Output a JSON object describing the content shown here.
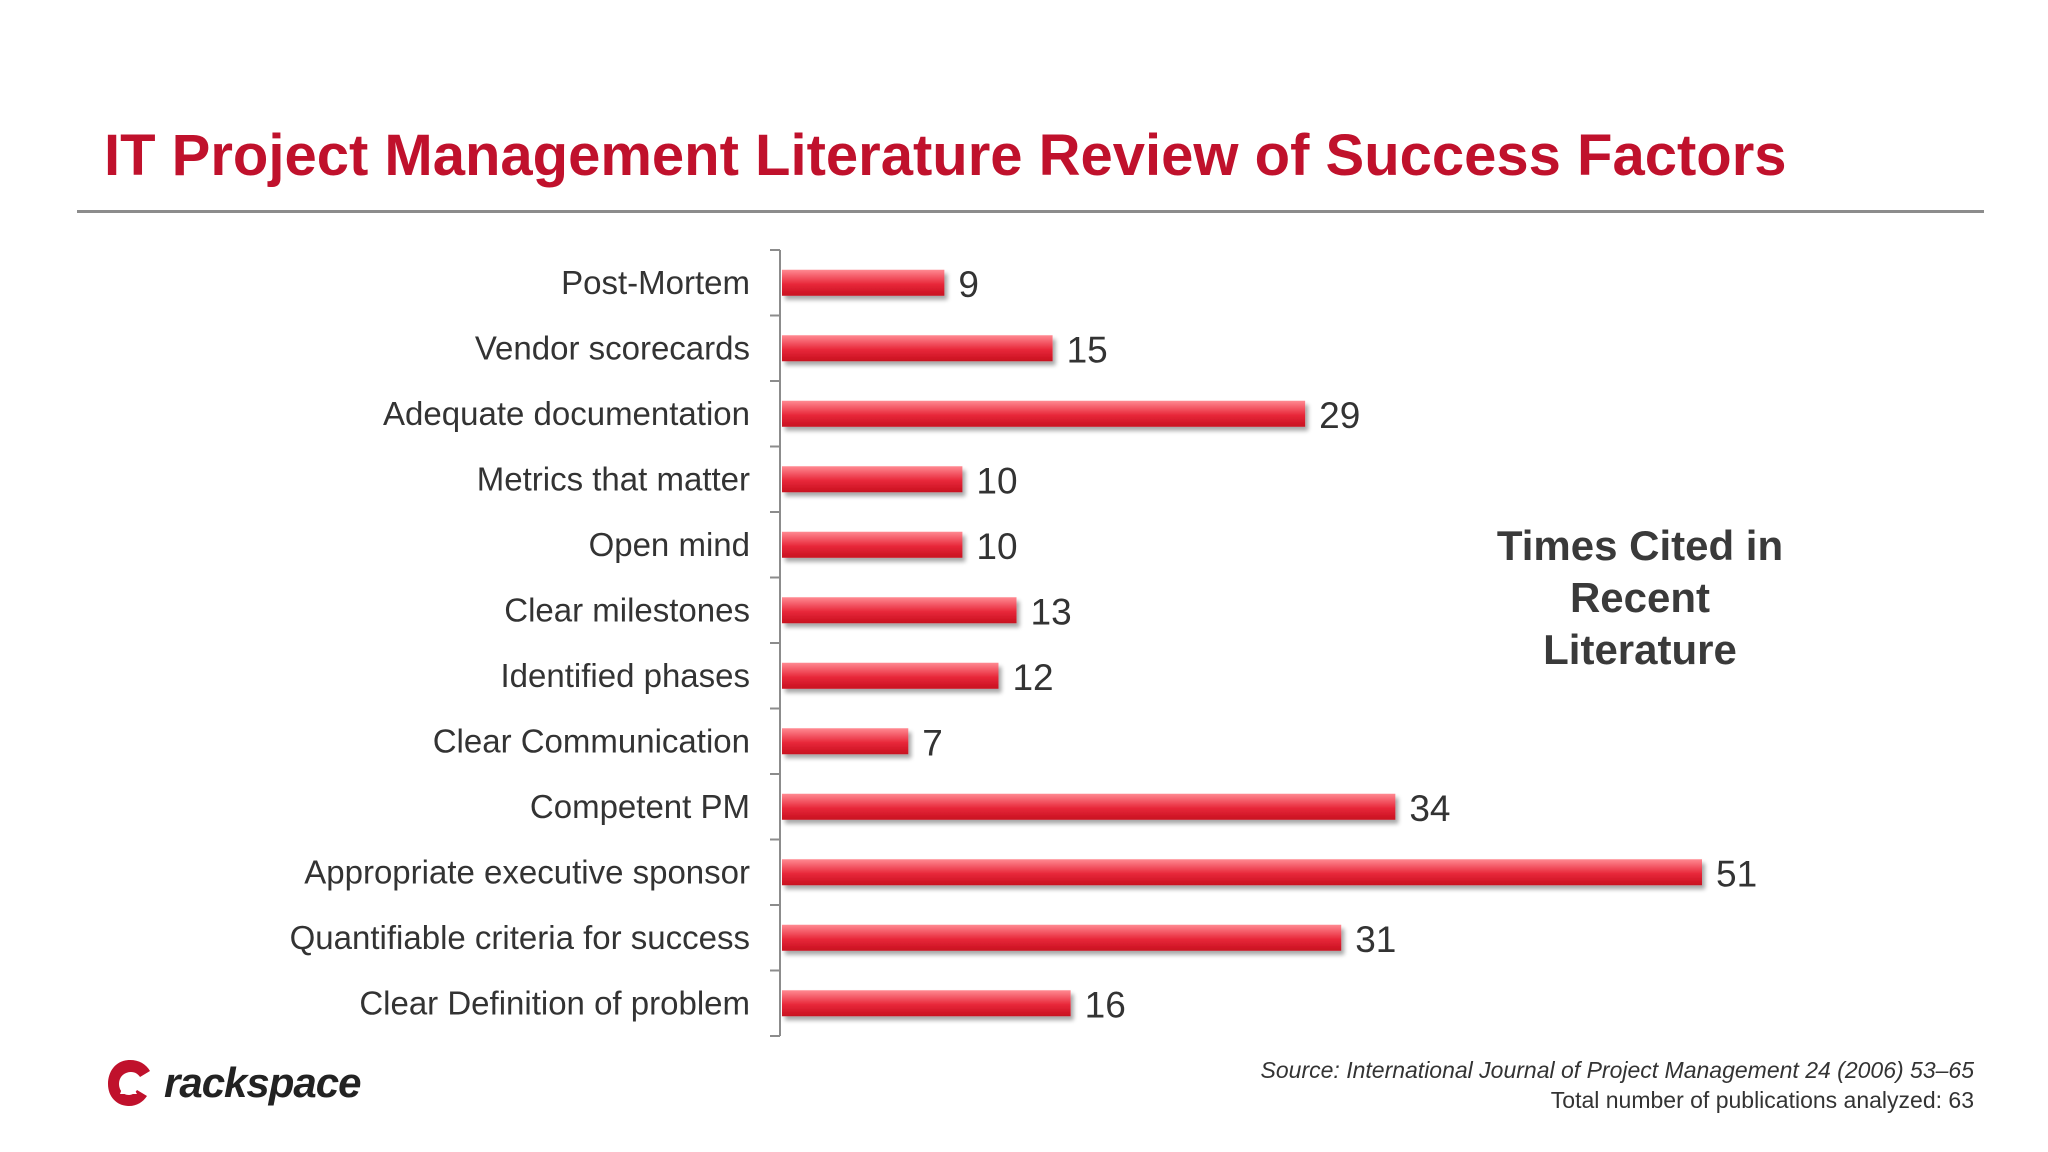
{
  "title": "IT Project Management Literature Review of Success Factors",
  "annotation": "Times Cited in\nRecent\nLiterature",
  "footer": {
    "source": "Source: International Journal of Project Management 24 (2006) 53–65",
    "total": "Total number of publications analyzed: 63"
  },
  "logo": {
    "text": "rackspace",
    "icon": "rackspace-logo-icon"
  },
  "colors": {
    "title": "#c0112c",
    "bar": "#e8283a",
    "bar_light": "#ff8a92",
    "rule": "#8c8c8c"
  },
  "chart_data": {
    "type": "bar",
    "orientation": "horizontal",
    "categories": [
      "Post-Mortem",
      "Vendor scorecards",
      "Adequate documentation",
      "Metrics that matter",
      "Open mind",
      "Clear milestones",
      "Identified phases",
      "Clear Communication",
      "Competent PM",
      "Appropriate executive sponsor",
      "Quantifiable criteria for success",
      "Clear Definition of problem"
    ],
    "values": [
      9,
      15,
      29,
      10,
      10,
      13,
      12,
      7,
      34,
      51,
      31,
      16
    ],
    "xlim": [
      0,
      51
    ],
    "grid": false,
    "legend": "none"
  }
}
